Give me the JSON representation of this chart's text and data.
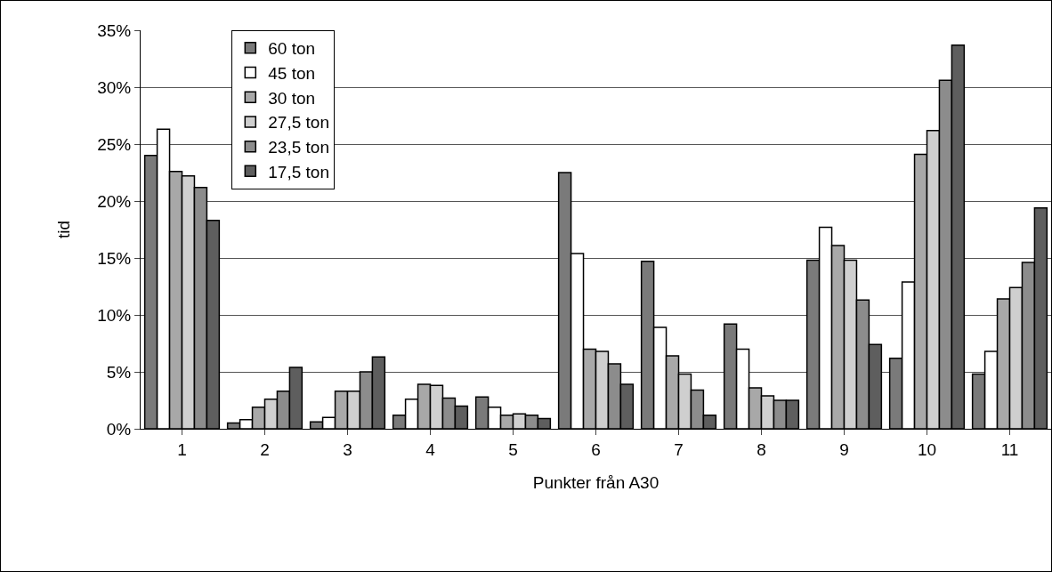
{
  "chart_data": {
    "type": "bar",
    "xlabel": "Punkter från A30",
    "ylabel": "tid",
    "categories": [
      "1",
      "2",
      "3",
      "4",
      "5",
      "6",
      "7",
      "8",
      "9",
      "10",
      "11"
    ],
    "series": [
      {
        "name": "60 ton",
        "color": "#7a7a7a",
        "values": [
          24,
          0.5,
          0.6,
          1.2,
          2.8,
          22.5,
          14.7,
          9.2,
          14.8,
          6.2,
          4.8
        ]
      },
      {
        "name": "45 ton",
        "color": "#ffffff",
        "values": [
          26.3,
          0.8,
          1.0,
          2.6,
          1.9,
          15.4,
          8.9,
          7.0,
          17.7,
          12.9,
          6.8
        ]
      },
      {
        "name": "30 ton",
        "color": "#a8a8a8",
        "values": [
          22.6,
          1.9,
          3.3,
          3.9,
          1.2,
          7.0,
          6.4,
          3.6,
          16.1,
          24.1,
          11.4
        ]
      },
      {
        "name": "27,5 ton",
        "color": "#cfcfcf",
        "values": [
          22.2,
          2.6,
          3.3,
          3.8,
          1.3,
          6.8,
          4.8,
          2.9,
          14.8,
          26.2,
          12.4
        ]
      },
      {
        "name": "23,5 ton",
        "color": "#8c8c8c",
        "values": [
          21.2,
          3.3,
          5.0,
          2.7,
          1.2,
          5.7,
          3.4,
          2.5,
          11.3,
          30.6,
          14.6
        ]
      },
      {
        "name": "17,5 ton",
        "color": "#5e5e5e",
        "values": [
          18.3,
          5.4,
          6.3,
          2.0,
          0.9,
          3.9,
          1.2,
          2.5,
          7.4,
          33.7,
          19.4
        ]
      }
    ],
    "ylim": [
      0,
      35
    ],
    "yticks": [
      {
        "value": 0,
        "label": "0%"
      },
      {
        "value": 5,
        "label": "5%"
      },
      {
        "value": 10,
        "label": "10%"
      },
      {
        "value": 15,
        "label": "15%"
      },
      {
        "value": 20,
        "label": "20%"
      },
      {
        "value": 25,
        "label": "25%"
      },
      {
        "value": 30,
        "label": "30%"
      },
      {
        "value": 35,
        "label": "35%"
      }
    ],
    "grid": "y",
    "legend": "top left"
  }
}
